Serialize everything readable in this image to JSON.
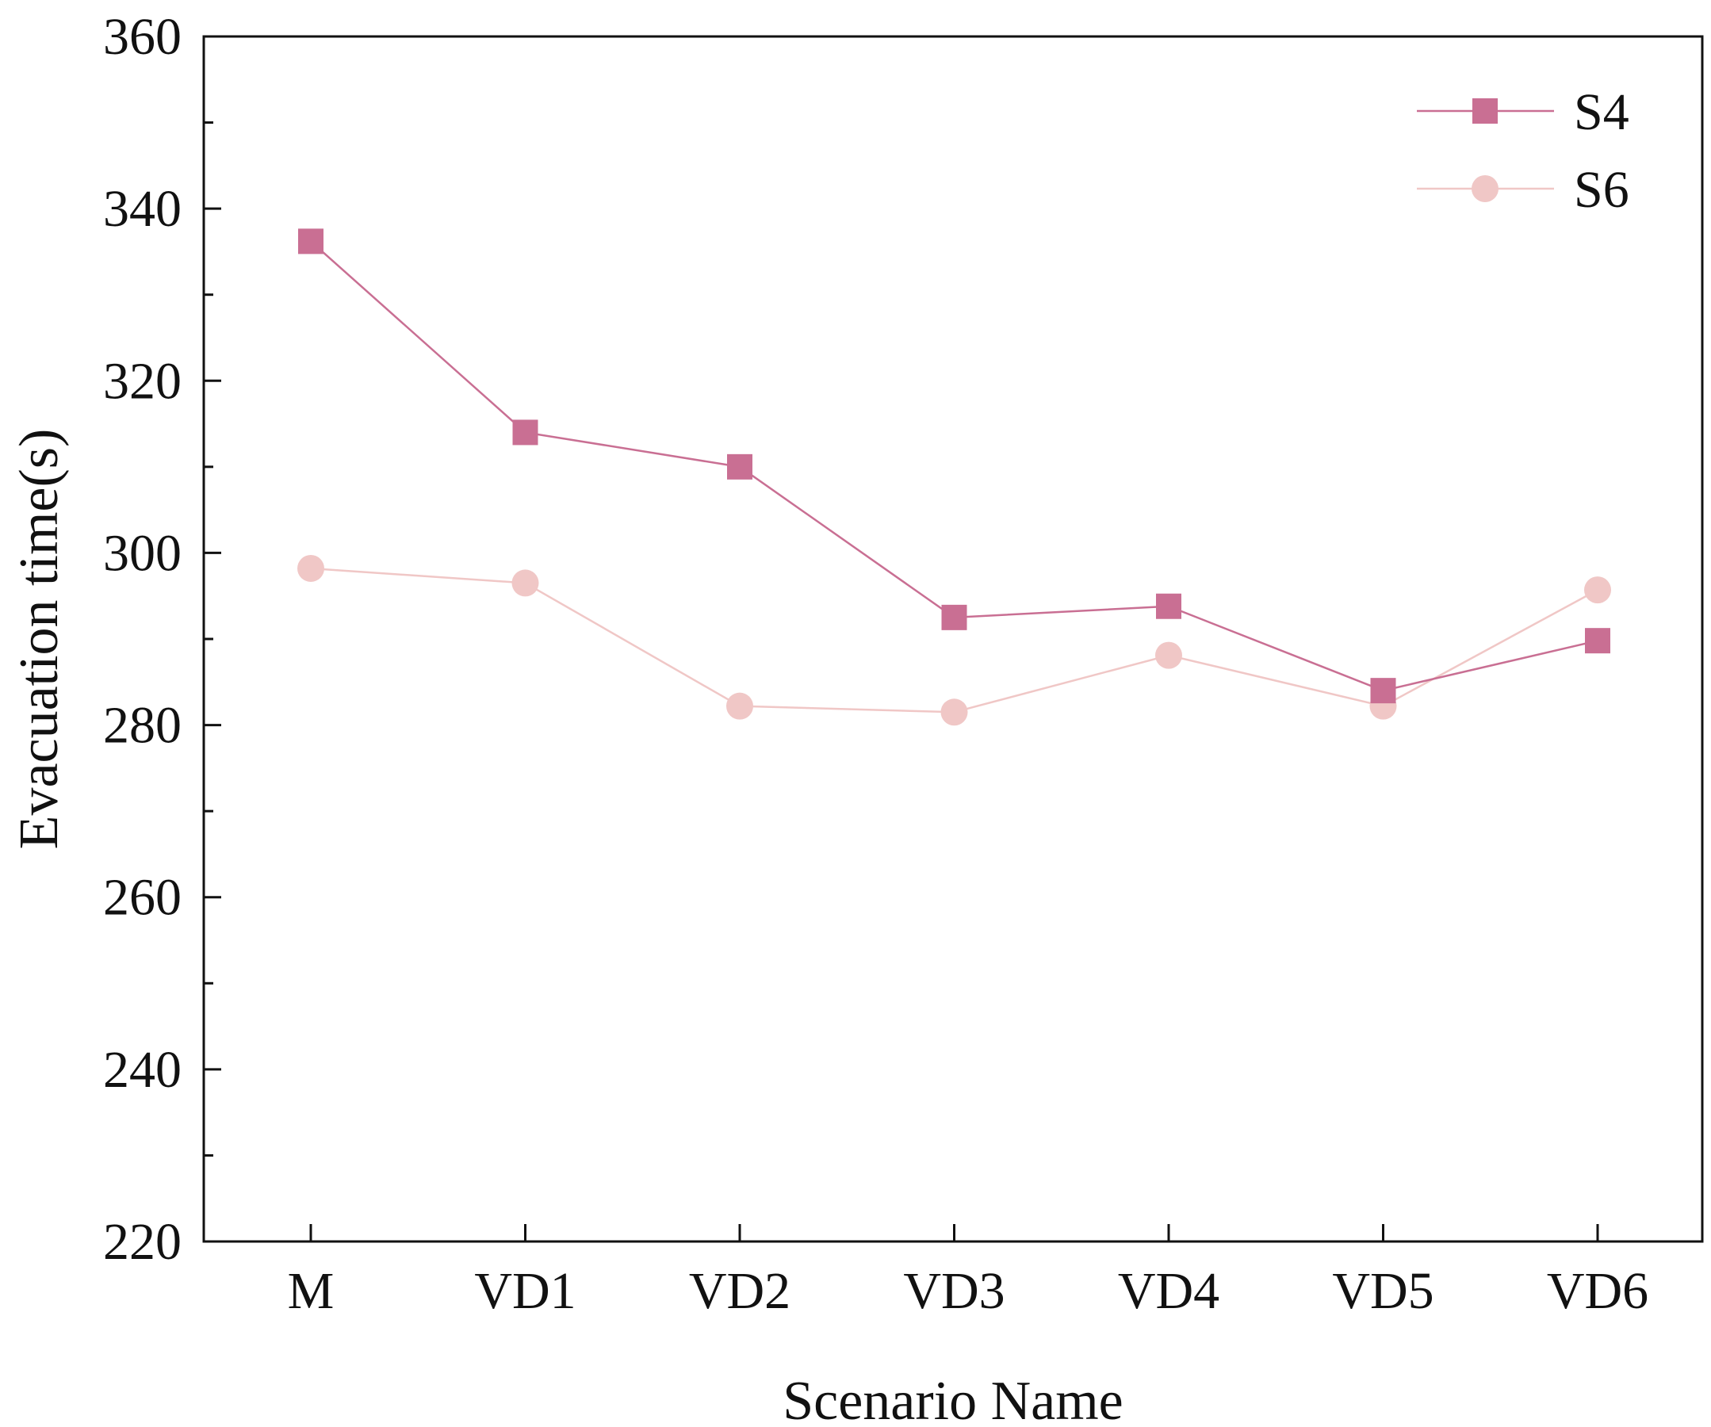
{
  "chart_data": {
    "type": "line",
    "title": "",
    "xlabel": "Scenario Name",
    "ylabel": "Evacuation time(s)",
    "categories": [
      "M",
      "VD1",
      "VD2",
      "VD3",
      "VD4",
      "VD5",
      "VD6"
    ],
    "ylim": [
      220,
      360
    ],
    "yticks": [
      220,
      240,
      260,
      280,
      300,
      320,
      340,
      360
    ],
    "grid": false,
    "legend_position": "top-right",
    "series": [
      {
        "name": "S4",
        "marker": "square",
        "color": "#c96f93",
        "values": [
          336.2,
          314.0,
          310.0,
          292.5,
          293.8,
          284.0,
          289.8
        ]
      },
      {
        "name": "S6",
        "marker": "circle",
        "color": "#f0c7c6",
        "values": [
          298.2,
          296.5,
          282.2,
          281.5,
          288.1,
          282.2,
          295.7
        ]
      }
    ]
  }
}
